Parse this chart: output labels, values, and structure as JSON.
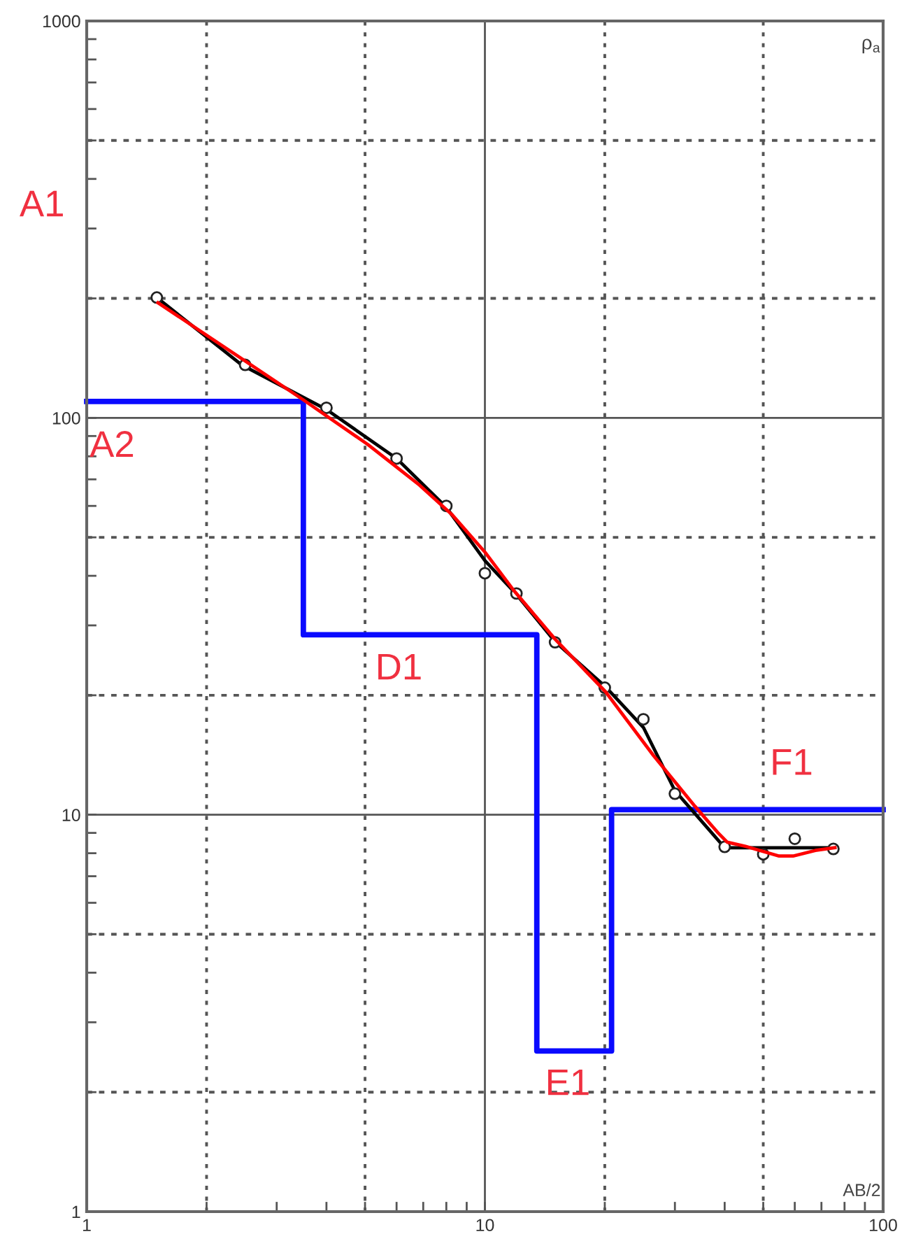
{
  "chart_data": {
    "type": "line",
    "xlabel": "AB/2",
    "ylabel": "ρ$_{a}$",
    "log": "xy",
    "xlim": [
      1,
      100
    ],
    "ylim": [
      1,
      1000
    ],
    "xticks": [
      1,
      {
        "value": 2,
        "label": null
      },
      {
        "value": 5,
        "label": null
      },
      10,
      {
        "value": 20,
        "label": null
      },
      {
        "value": 50,
        "label": null
      },
      100
    ],
    "yticks": [
      1,
      {
        "value": 2,
        "label": null
      },
      {
        "value": 5,
        "label": null
      },
      10,
      {
        "value": 20,
        "label": null
      },
      {
        "value": 50,
        "label": null
      },
      100,
      {
        "value": 200,
        "label": null
      },
      {
        "value": 500,
        "label": null
      },
      1000
    ],
    "grid": true,
    "series": [
      {
        "type": "step",
        "color": "#0a0aff",
        "x": [
          1,
          3.5,
          13.5,
          20.8,
          100
        ],
        "values": [
          110,
          28.4,
          2.54,
          10.3,
          10.3
        ]
      },
      {
        "color": "#000000",
        "x": [
          1.5,
          2.45,
          4.0,
          6.0,
          8.0,
          10,
          12,
          15,
          20,
          25,
          30,
          40,
          74
        ],
        "values": [
          201,
          136,
          105,
          79,
          59.5,
          43.7,
          35.9,
          27.3,
          21.1,
          16.6,
          11.5,
          8.26,
          8.26
        ]
      },
      {
        "type": "scatter",
        "color": "#222222",
        "marker": "circle",
        "x": [
          1.5,
          2.5,
          4,
          6,
          8,
          10,
          12,
          15,
          20,
          25,
          30,
          40,
          50,
          60,
          75
        ],
        "values": [
          201,
          136,
          106,
          79,
          60,
          40.6,
          36.1,
          27.2,
          20.9,
          17.4,
          11.3,
          8.3,
          7.95,
          8.7,
          8.2
        ]
      },
      {
        "color": "#ff0000",
        "x": [
          1.51,
          3.5,
          5.08,
          6.85,
          8.26,
          10,
          11.8,
          15,
          20.1,
          26.5,
          33.7,
          38.4,
          40.6,
          45.1,
          54.8,
          59.4,
          67.6,
          75.7
        ],
        "values": [
          195,
          111,
          85.7,
          67.7,
          57.1,
          45.9,
          36.8,
          27.7,
          20.4,
          14.1,
          10.5,
          9.03,
          8.53,
          8.33,
          7.87,
          7.87,
          8.13,
          8.26
        ]
      }
    ],
    "annotations": [
      "A1",
      "A2",
      "D1",
      "E1",
      "F1"
    ]
  }
}
